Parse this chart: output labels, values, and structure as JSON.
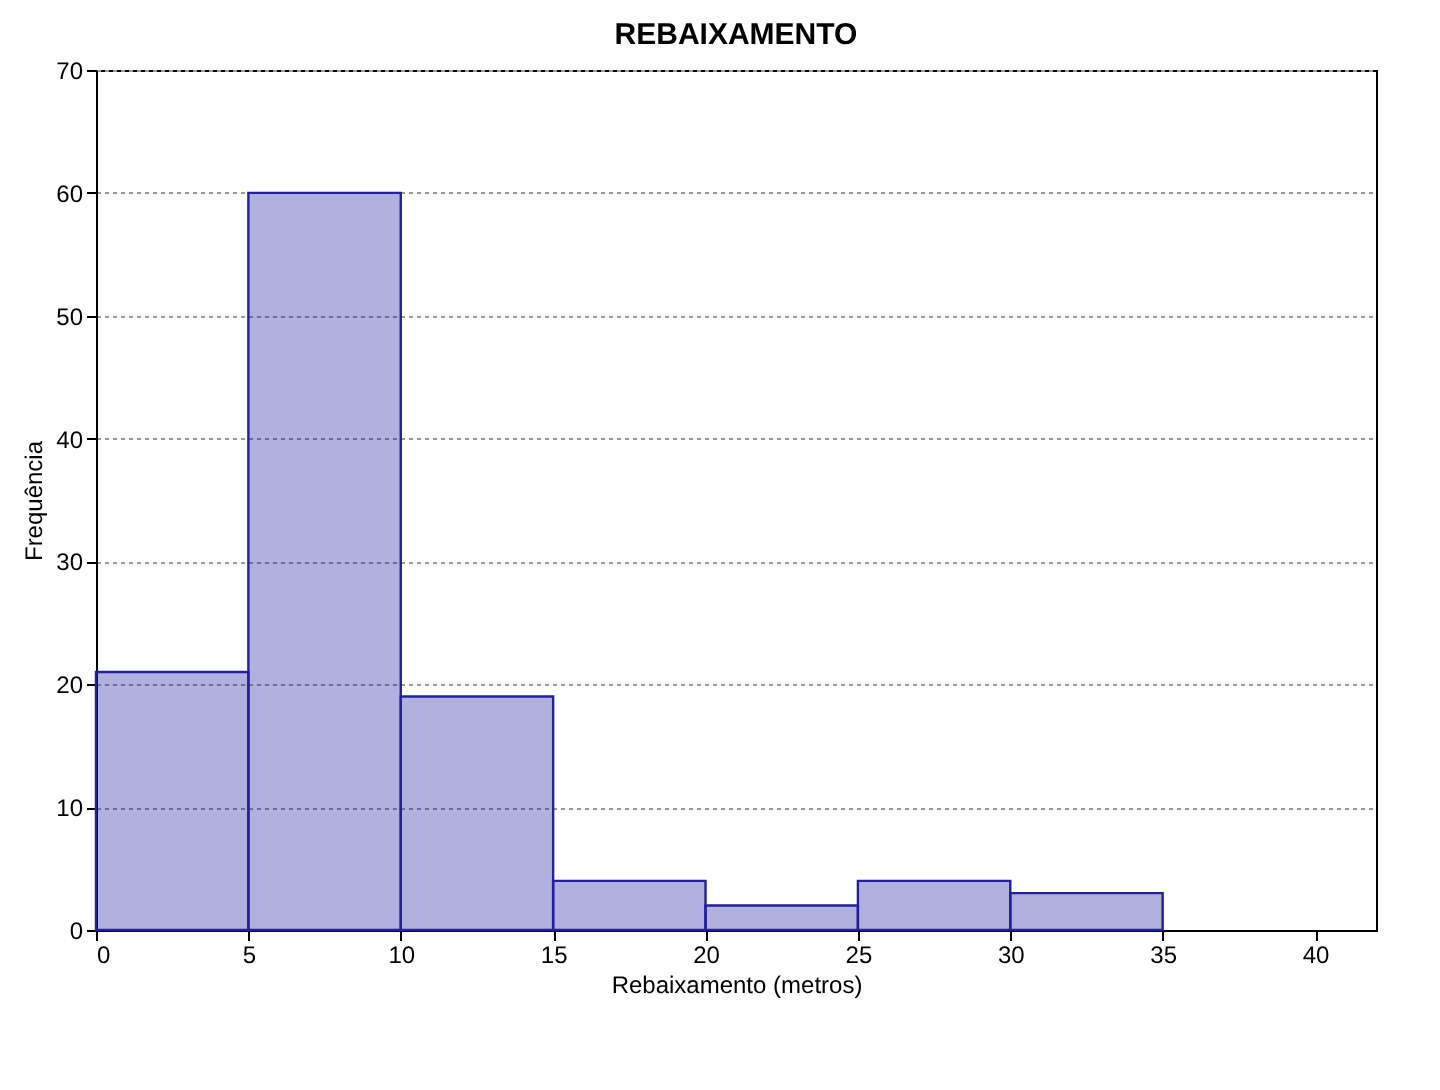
{
  "chart_data": {
    "type": "histogram",
    "title": "REBAIXAMENTO",
    "xlabel": "Rebaixamento (metros)",
    "ylabel": "Frequência",
    "bins": [
      0,
      5,
      10,
      15,
      20,
      25,
      30,
      35
    ],
    "values": [
      21,
      60,
      19,
      4,
      2,
      4,
      3
    ],
    "color": "#2020a0",
    "xlim": [
      0,
      42
    ],
    "xticks": [
      0,
      5,
      10,
      15,
      20,
      25,
      30,
      35,
      40
    ],
    "ylim": [
      0,
      70
    ],
    "yticks": [
      0,
      10,
      20,
      30,
      40,
      50,
      60,
      70
    ],
    "grid": "y"
  }
}
